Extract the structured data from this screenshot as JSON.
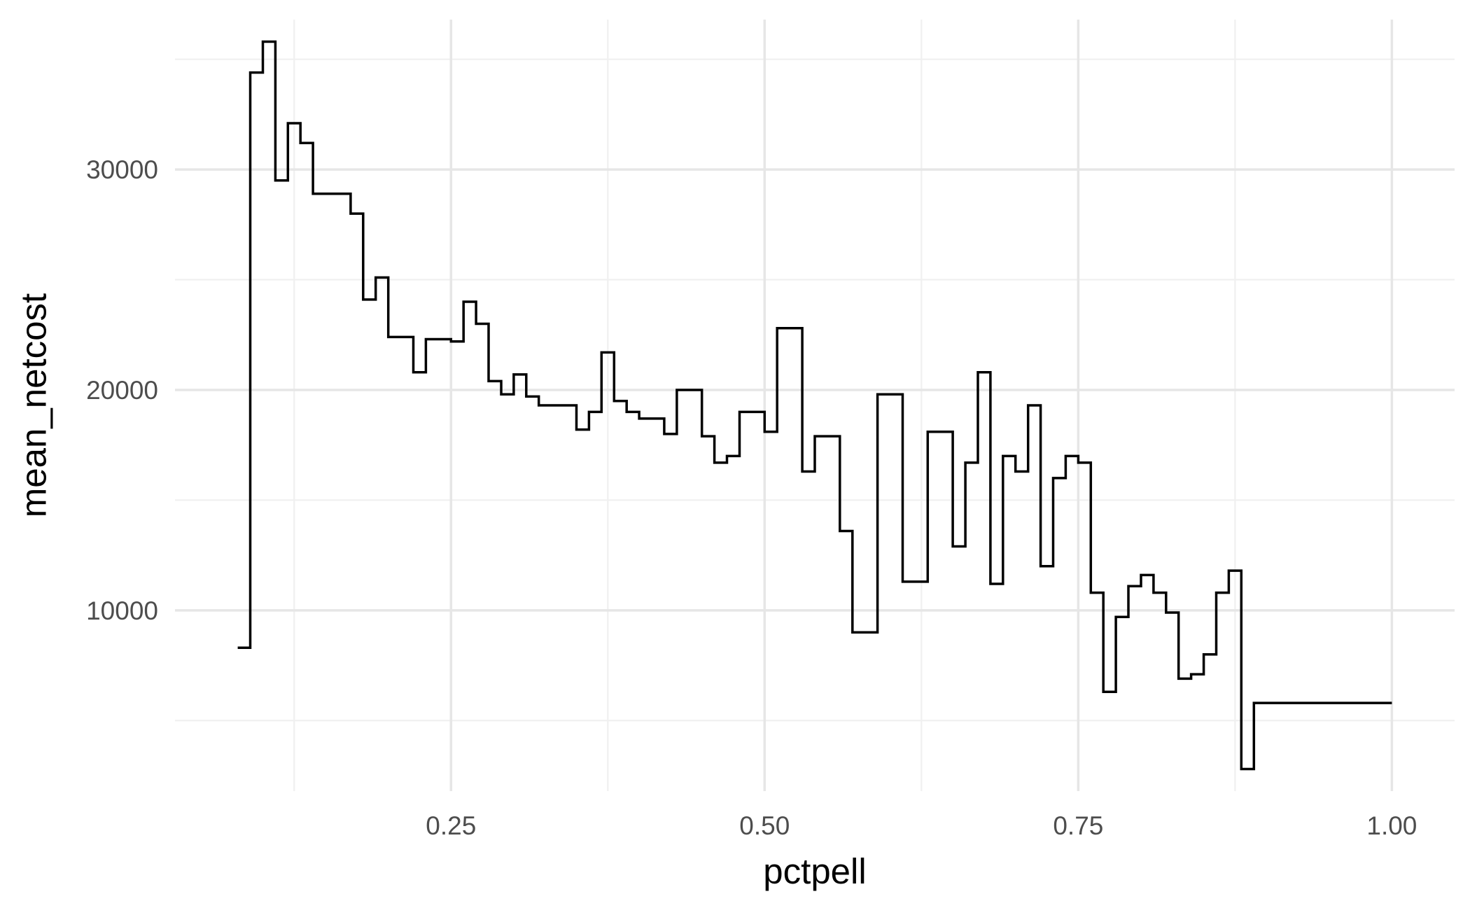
{
  "chart_data": {
    "type": "line",
    "geom": "step",
    "title": "",
    "xlabel": "pctpell",
    "ylabel": "mean_netcost",
    "xlim": [
      0.03,
      1.05
    ],
    "ylim": [
      1800,
      36800
    ],
    "x_ticks": [
      {
        "value": 0.25,
        "label": "0.25"
      },
      {
        "value": 0.5,
        "label": "0.50"
      },
      {
        "value": 0.75,
        "label": "0.75"
      },
      {
        "value": 1.0,
        "label": "1.00"
      }
    ],
    "x_minor_ticks": [
      0.125,
      0.375,
      0.625,
      0.875
    ],
    "y_ticks": [
      {
        "value": 10000,
        "label": "10000"
      },
      {
        "value": 20000,
        "label": "20000"
      },
      {
        "value": 30000,
        "label": "30000"
      }
    ],
    "y_minor_ticks": [
      5000,
      15000,
      25000,
      35000
    ],
    "grid": true,
    "legend": "none",
    "series": [
      {
        "color": "#000000",
        "x": [
          0.08,
          0.09,
          0.1,
          0.11,
          0.12,
          0.13,
          0.14,
          0.17,
          0.18,
          0.19,
          0.2,
          0.22,
          0.23,
          0.25,
          0.26,
          0.27,
          0.28,
          0.29,
          0.3,
          0.31,
          0.32,
          0.35,
          0.36,
          0.37,
          0.38,
          0.39,
          0.4,
          0.42,
          0.43,
          0.45,
          0.46,
          0.47,
          0.48,
          0.5,
          0.51,
          0.53,
          0.54,
          0.56,
          0.57,
          0.59,
          0.61,
          0.63,
          0.65,
          0.66,
          0.67,
          0.68,
          0.69,
          0.7,
          0.71,
          0.72,
          0.73,
          0.74,
          0.75,
          0.76,
          0.77,
          0.78,
          0.79,
          0.8,
          0.81,
          0.82,
          0.83,
          0.84,
          0.85,
          0.86,
          0.87,
          0.88,
          0.89,
          0.9,
          0.91,
          0.94,
          0.98,
          1.0
        ],
        "y": [
          8300,
          34400,
          35800,
          29500,
          32100,
          31200,
          28900,
          28000,
          24100,
          25100,
          22400,
          20800,
          22300,
          22200,
          24000,
          23000,
          20400,
          19800,
          20700,
          19700,
          19300,
          18200,
          19000,
          21700,
          19500,
          19000,
          18700,
          18000,
          20000,
          17900,
          16700,
          17000,
          19000,
          18100,
          22800,
          16300,
          17900,
          13600,
          9000,
          19800,
          11300,
          18100,
          12900,
          16700,
          20800,
          11200,
          17000,
          16300,
          19300,
          12000,
          16000,
          17000,
          16700,
          10800,
          6300,
          9700,
          11100,
          11600,
          10800,
          9900,
          6900,
          7100,
          8000,
          10800,
          11800,
          2800,
          5800,
          5800,
          5800,
          5800,
          5800,
          5800
        ]
      }
    ]
  }
}
